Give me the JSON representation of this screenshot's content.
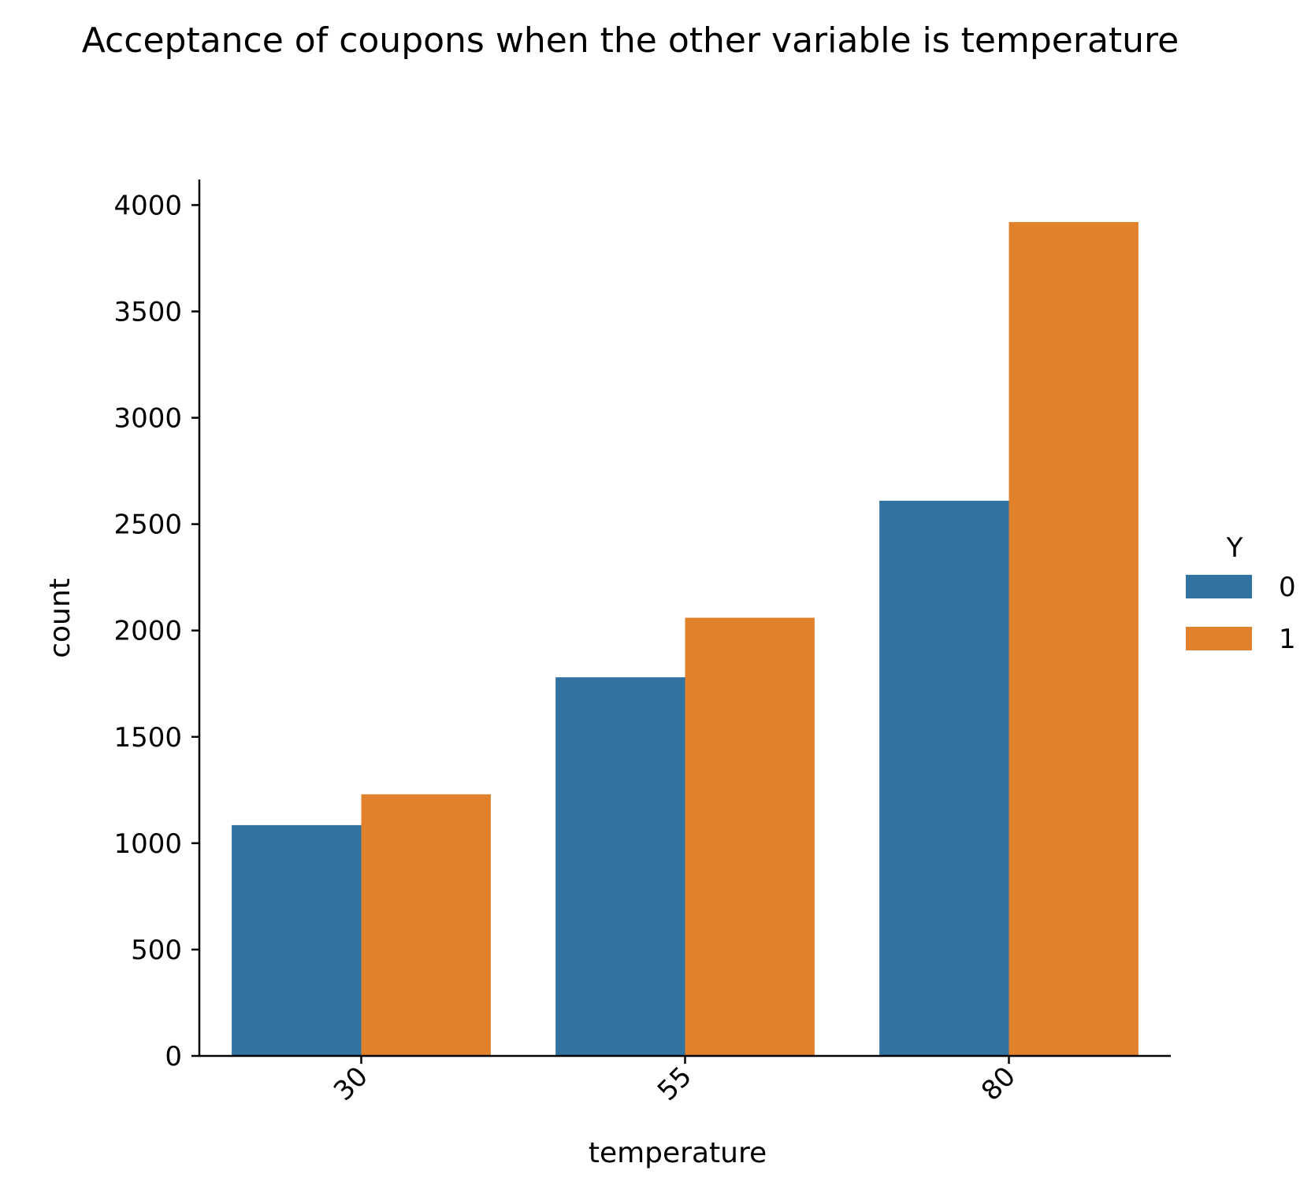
{
  "chart_data": {
    "type": "bar",
    "title": "Acceptance of coupons when the other variable is temperature",
    "xlabel": "temperature",
    "ylabel": "count",
    "categories": [
      "30",
      "55",
      "80"
    ],
    "series": [
      {
        "name": "0",
        "values": [
          1085,
          1780,
          2610
        ],
        "color": "#3274a1"
      },
      {
        "name": "1",
        "values": [
          1230,
          2060,
          3920
        ],
        "color": "#e1812c"
      }
    ],
    "ylim": [
      0,
      4120
    ],
    "yticks": [
      0,
      500,
      1000,
      1500,
      2000,
      2500,
      3000,
      3500,
      4000
    ],
    "ytick_labels": [
      "0",
      "500",
      "1000",
      "1500",
      "2000",
      "2500",
      "3000",
      "3500",
      "4000"
    ],
    "xtick_rotation": 45,
    "legend": {
      "title": "Y",
      "placement": "right",
      "entries": [
        "0",
        "1"
      ]
    },
    "grid": false
  }
}
